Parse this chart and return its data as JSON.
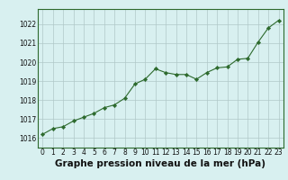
{
  "x": [
    0,
    1,
    2,
    3,
    4,
    5,
    6,
    7,
    8,
    9,
    10,
    11,
    12,
    13,
    14,
    15,
    16,
    17,
    18,
    19,
    20,
    21,
    22,
    23
  ],
  "y": [
    1016.2,
    1016.5,
    1016.6,
    1016.9,
    1017.1,
    1017.3,
    1017.6,
    1017.75,
    1018.1,
    1018.85,
    1019.1,
    1019.65,
    1019.45,
    1019.35,
    1019.35,
    1019.1,
    1019.45,
    1019.7,
    1019.75,
    1020.15,
    1020.2,
    1021.05,
    1021.8,
    1022.2
  ],
  "line_color": "#2d6a2d",
  "marker_color": "#2d6a2d",
  "bg_color": "#d8f0f0",
  "grid_color": "#b0c8c8",
  "spine_color": "#2d6a2d",
  "xlabel": "Graphe pression niveau de la mer (hPa)",
  "xlabel_fontsize": 7.5,
  "ylim": [
    1015.5,
    1022.8
  ],
  "xlim": [
    -0.5,
    23.5
  ],
  "yticks": [
    1016,
    1017,
    1018,
    1019,
    1020,
    1021,
    1022
  ],
  "xticks": [
    0,
    1,
    2,
    3,
    4,
    5,
    6,
    7,
    8,
    9,
    10,
    11,
    12,
    13,
    14,
    15,
    16,
    17,
    18,
    19,
    20,
    21,
    22,
    23
  ],
  "tick_label_fontsize": 5.5
}
